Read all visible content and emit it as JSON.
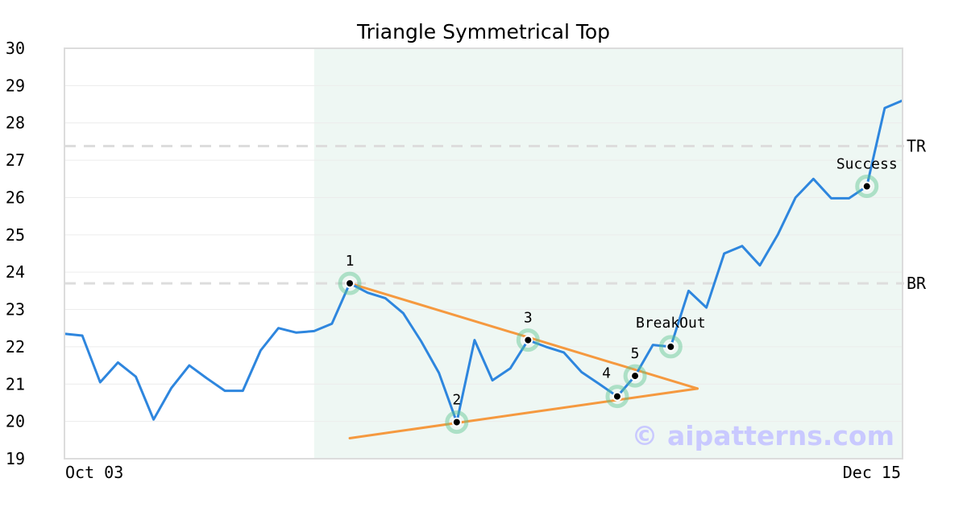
{
  "chart_data": {
    "type": "line",
    "title": "Triangle Symmetrical Top",
    "xlabel": "",
    "ylabel": "",
    "ylim": [
      19,
      30
    ],
    "y_ticks": [
      19,
      20,
      21,
      22,
      23,
      24,
      25,
      26,
      27,
      28,
      29,
      30
    ],
    "x_tick_labels": [
      "Oct 03",
      "Dec 15"
    ],
    "x_count": 48,
    "colors": {
      "price": "#2e86de",
      "triangle": "#f5993f",
      "highlight": "#5cc491",
      "level": "#dddddd",
      "shade": "#eef7f3",
      "watermark": "#c9c9ff"
    },
    "series": [
      {
        "values": [
          22.35,
          22.3,
          21.05,
          21.58,
          21.2,
          20.05,
          20.9,
          21.5,
          21.15,
          20.82,
          20.82,
          21.9,
          22.5,
          22.38,
          22.42,
          22.62,
          23.7,
          23.45,
          23.3,
          22.9,
          22.15,
          21.3,
          19.98,
          22.18,
          21.1,
          21.42,
          22.18,
          22.0,
          21.85,
          21.32,
          21.0,
          20.67,
          21.22,
          22.05,
          22.0,
          23.5,
          23.05,
          24.5,
          24.7,
          24.18,
          25.0,
          26.0,
          26.5,
          25.98,
          25.98,
          26.3,
          28.4,
          28.6
        ]
      }
    ],
    "shaded_range": [
      14,
      47
    ],
    "triangle_lines": [
      {
        "x": [
          16,
          35.5
        ],
        "y": [
          23.7,
          20.88
        ]
      },
      {
        "x": [
          16,
          35.5
        ],
        "y": [
          19.55,
          20.88
        ]
      }
    ],
    "levels": [
      {
        "label": "TR",
        "y": 27.38
      },
      {
        "label": "BR",
        "y": 23.7
      }
    ],
    "points": [
      {
        "label": "1",
        "x": 16,
        "y": 23.7
      },
      {
        "label": "2",
        "x": 22,
        "y": 19.98
      },
      {
        "label": "3",
        "x": 26,
        "y": 22.18
      },
      {
        "label": "4",
        "x": 31,
        "y": 20.67
      },
      {
        "label": "5",
        "x": 32,
        "y": 21.22
      },
      {
        "label": "BreakOut",
        "x": 34,
        "y": 22.0
      },
      {
        "label": "Success",
        "x": 45,
        "y": 26.3
      }
    ],
    "watermark": "© aipatterns.com"
  }
}
